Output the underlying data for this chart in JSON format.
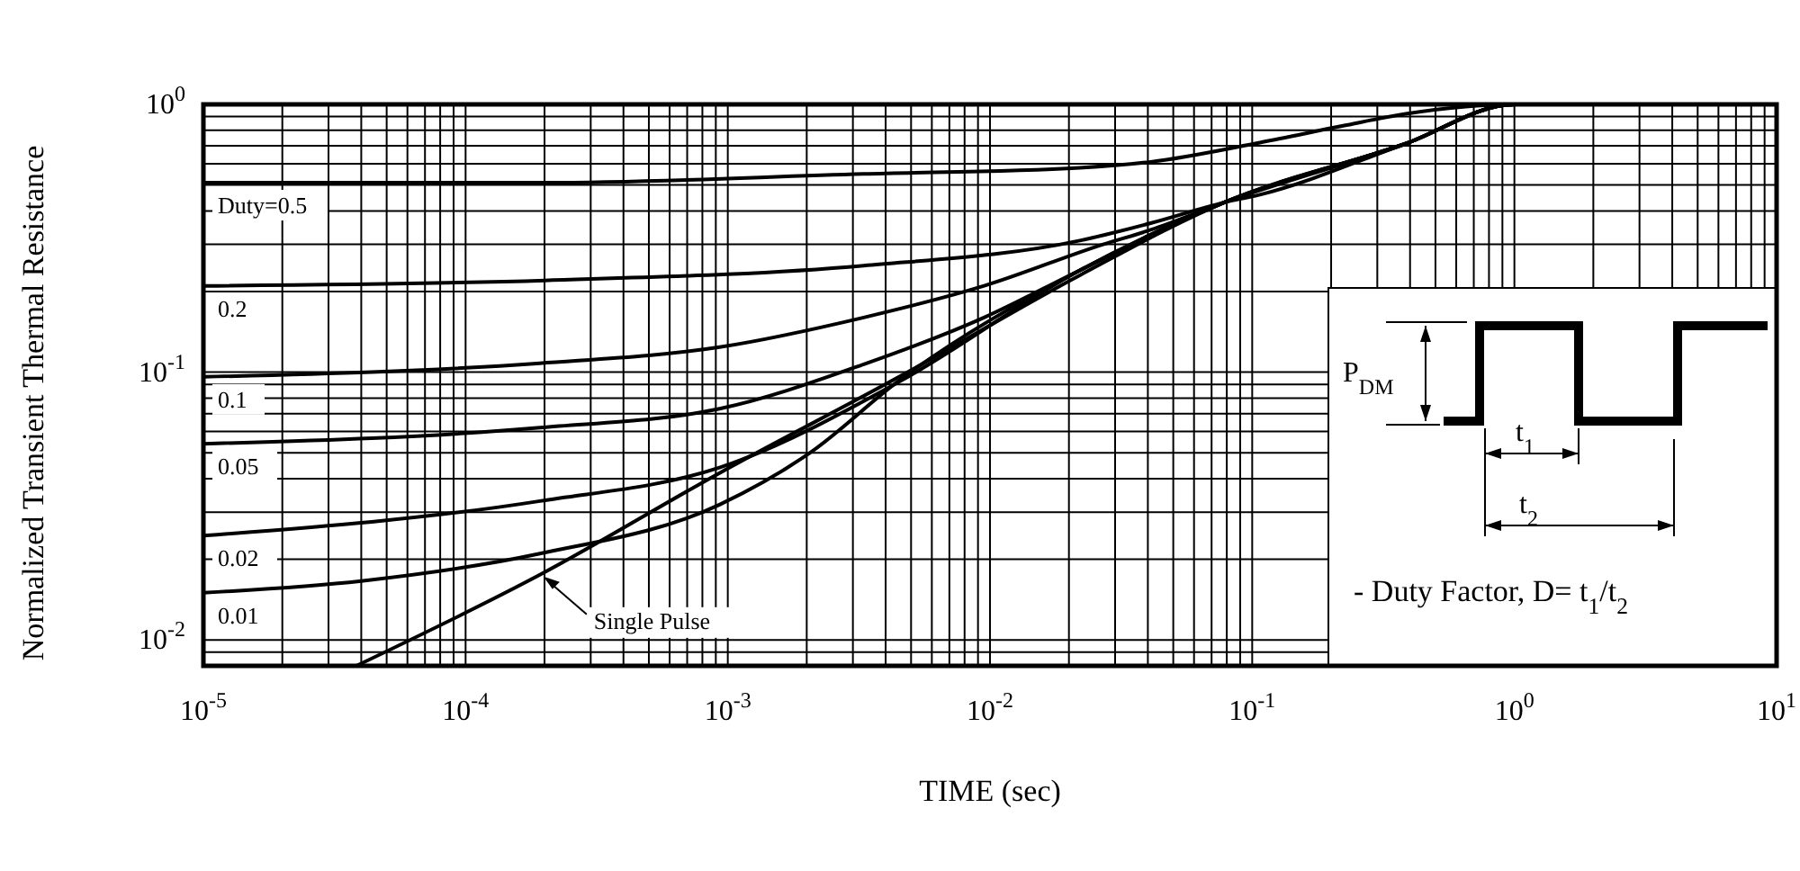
{
  "chart_data": {
    "type": "line",
    "xlabel": "TIME (sec)",
    "ylabel": "Normalized Transient Thermal Resistance",
    "log": "xy",
    "grid": true,
    "xlim": [
      1e-05,
      10
    ],
    "ylim": [
      0.008,
      1
    ],
    "xticks": [
      {
        "value": 1e-05,
        "label": "10$^{-5}$"
      },
      {
        "value": 0.0001,
        "label": "10$^{-4}$"
      },
      {
        "value": 0.001,
        "label": "10$^{-3}$"
      },
      {
        "value": 0.01,
        "label": "10$^{-2}$"
      },
      {
        "value": 0.1,
        "label": "10$^{-1}$"
      },
      {
        "value": 1,
        "label": "10$^{0}$"
      },
      {
        "value": 10,
        "label": "10$^{1}$"
      }
    ],
    "yticks": [
      {
        "value": 0.01,
        "label": "10$^{-2}$"
      },
      {
        "value": 0.1,
        "label": "10$^{-1}$"
      },
      {
        "value": 1,
        "label": "10$^{0}$"
      }
    ],
    "series": [
      {
        "name": "Duty=0.5",
        "color": "#000000",
        "x": [
          1e-05,
          0.0002,
          0.0033,
          0.022,
          0.041,
          0.107,
          0.22,
          0.38,
          1,
          10
        ],
        "values": [
          0.51,
          0.51,
          0.55,
          0.58,
          0.61,
          0.72,
          0.83,
          0.92,
          1,
          1
        ]
      },
      {
        "name": "0.2",
        "color": "#000000",
        "x": [
          1e-05,
          0.0002,
          0.0033,
          0.022,
          0.041,
          0.078,
          0.107,
          0.38,
          1,
          10
        ],
        "values": [
          0.21,
          0.22,
          0.25,
          0.31,
          0.36,
          0.43,
          0.46,
          0.71,
          1,
          1
        ]
      },
      {
        "name": "0.1",
        "color": "#000000",
        "x": [
          1e-05,
          0.000192,
          0.00093,
          0.0033,
          0.0095,
          0.027,
          0.041,
          0.078,
          0.38,
          1,
          10
        ],
        "values": [
          0.096,
          0.108,
          0.124,
          0.16,
          0.21,
          0.3,
          0.34,
          0.43,
          0.71,
          1,
          1
        ]
      },
      {
        "name": "0.05",
        "color": "#000000",
        "x": [
          1e-05,
          0.000192,
          0.00093,
          0.0033,
          0.0095,
          0.022,
          0.078,
          0.38,
          1,
          10
        ],
        "values": [
          0.054,
          0.062,
          0.073,
          0.107,
          0.16,
          0.24,
          0.43,
          0.71,
          1,
          1
        ]
      },
      {
        "name": "0.02",
        "color": "#000000",
        "x": [
          1e-05,
          0.000192,
          0.00093,
          0.0045,
          0.022,
          0.078,
          0.38,
          1,
          10
        ],
        "values": [
          0.0245,
          0.033,
          0.044,
          0.092,
          0.24,
          0.43,
          0.71,
          1,
          1
        ]
      },
      {
        "name": "0.01",
        "color": "#000000",
        "x": [
          1e-05,
          4e-05,
          0.000192,
          0.00093,
          0.00206,
          0.0045,
          0.022,
          0.078,
          0.38,
          1,
          10
        ],
        "values": [
          0.015,
          0.0166,
          0.021,
          0.032,
          0.05,
          0.093,
          0.24,
          0.43,
          0.71,
          1,
          1
        ]
      },
      {
        "name": "Single Pulse",
        "color": "#000000",
        "x": [
          3.83e-05,
          0.000192,
          0.00093,
          0.0045,
          0.022,
          0.078,
          0.38,
          1,
          10
        ],
        "values": [
          0.008,
          0.0175,
          0.042,
          0.096,
          0.23,
          0.43,
          0.71,
          1,
          1
        ]
      }
    ],
    "annotations": [
      "P$_{DM}$",
      "t$_{1}$",
      "t$_{2}$",
      "- Duty Factor, D= t$_{1}$/t$_{2}$"
    ]
  }
}
